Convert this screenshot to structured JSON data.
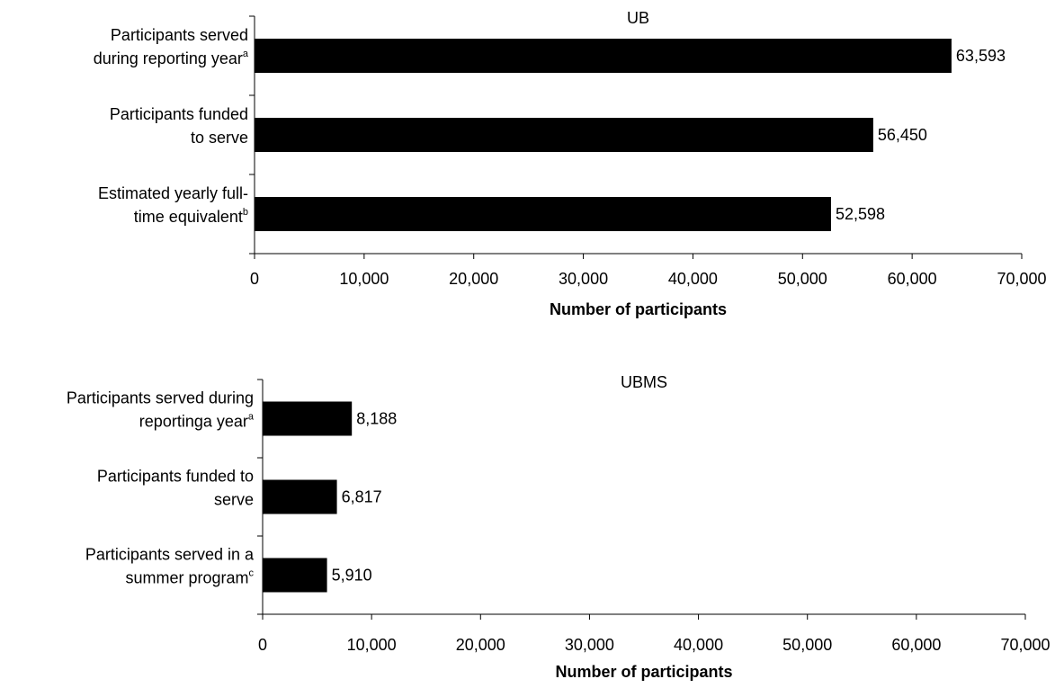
{
  "chart_data": [
    {
      "type": "bar",
      "orientation": "horizontal",
      "title": "UB",
      "xlabel": "Number of participants",
      "xlim": [
        0,
        70000
      ],
      "ticks": [
        "0",
        "10,000",
        "20,000",
        "30,000",
        "40,000",
        "50,000",
        "60,000",
        "70,000"
      ],
      "categories": [
        {
          "lines": [
            {
              "text": "Participants served"
            },
            {
              "text": "during reporting year",
              "sup": "a"
            }
          ]
        },
        {
          "lines": [
            {
              "text": "Participants funded"
            },
            {
              "text": "to serve"
            }
          ]
        },
        {
          "lines": [
            {
              "text": "Estimated yearly full-"
            },
            {
              "text": "time equivalent",
              "sup": "b"
            }
          ]
        }
      ],
      "values": [
        63593,
        56450,
        52598
      ],
      "value_labels": [
        "63,593",
        "56,450",
        "52,598"
      ],
      "bar_color": "#000000",
      "grid": false
    },
    {
      "type": "bar",
      "orientation": "horizontal",
      "title": "UBMS",
      "xlabel": "Number of participants",
      "xlim": [
        0,
        70000
      ],
      "ticks": [
        "0",
        "10,000",
        "20,000",
        "30,000",
        "40,000",
        "50,000",
        "60,000",
        "70,000"
      ],
      "categories": [
        {
          "lines": [
            {
              "text": "Participants served during"
            },
            {
              "text": "reportinga year",
              "sup": "a"
            }
          ]
        },
        {
          "lines": [
            {
              "text": "Participants funded to"
            },
            {
              "text": "serve"
            }
          ]
        },
        {
          "lines": [
            {
              "text": "Participants served in a"
            },
            {
              "text": "summer program",
              "sup": "c"
            }
          ]
        }
      ],
      "values": [
        8188,
        6817,
        5910
      ],
      "value_labels": [
        "8,188",
        "6,817",
        "5,910"
      ],
      "bar_color": "#000000",
      "grid": false
    }
  ]
}
